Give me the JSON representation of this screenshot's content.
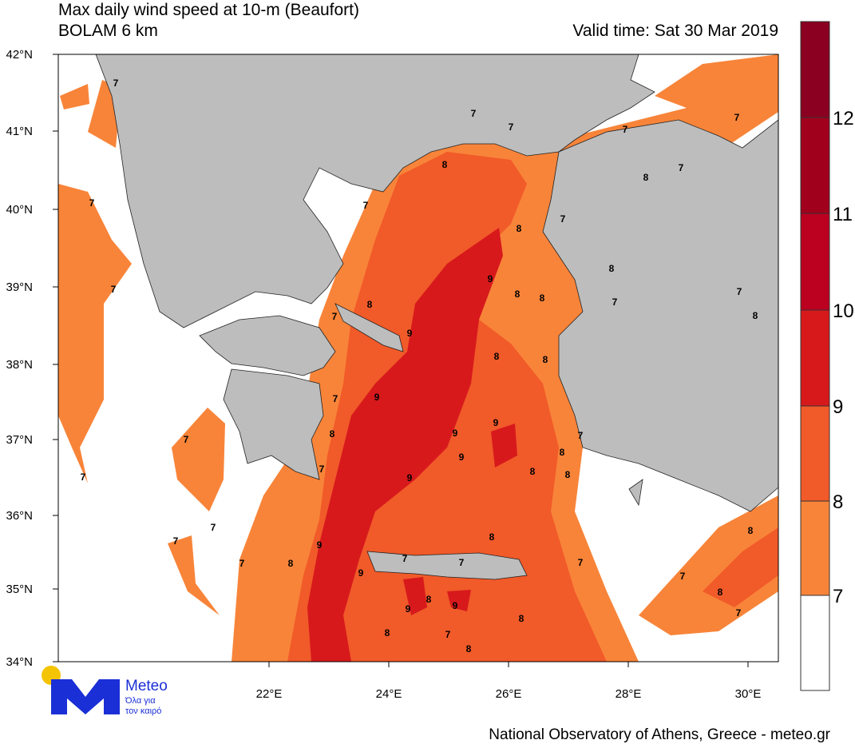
{
  "header": {
    "title": "Max daily wind speed at 10-m (Beaufort)",
    "subtitle": "BOLAM 6 km",
    "valid_time": "Valid time: Sat 30 Mar 2019"
  },
  "axes": {
    "lat_labels": [
      "42°N",
      "41°N",
      "40°N",
      "39°N",
      "38°N",
      "37°N",
      "36°N",
      "35°N",
      "34°N"
    ],
    "lon_labels": [
      "22°E",
      "24°E",
      "26°E",
      "28°E",
      "30°E"
    ]
  },
  "colorbar": {
    "labels": [
      "7",
      "8",
      "9",
      "10",
      "11",
      "12"
    ]
  },
  "contour_labels": [
    "7",
    "7",
    "7",
    "7",
    "7",
    "7",
    "8",
    "8",
    "7",
    "7",
    "7",
    "8",
    "7",
    "9",
    "8",
    "7",
    "8",
    "8",
    "8",
    "8",
    "7",
    "7",
    "9",
    "8",
    "8",
    "9",
    "7",
    "9",
    "9",
    "7",
    "8",
    "7",
    "9",
    "8",
    "7",
    "8",
    "8",
    "9",
    "7",
    "8",
    "7",
    "7",
    "8",
    "9",
    "7",
    "8",
    "7",
    "7",
    "7",
    "9",
    "7",
    "8",
    "8",
    "9",
    "9",
    "7",
    "8",
    "8",
    "7",
    "8"
  ],
  "logo": {
    "name": "Meteo",
    "tagline_1": "Όλα για",
    "tagline_2": "τον καιρό"
  },
  "footer": "National Observatory of Athens, Greece - meteo.gr"
}
